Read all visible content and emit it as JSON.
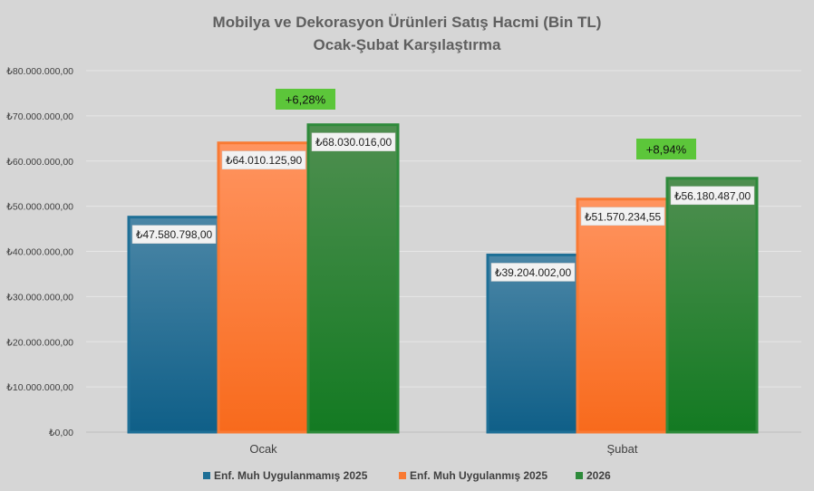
{
  "chart_data": {
    "type": "bar",
    "title": "Mobilya ve Dekorasyon Ürünleri Satış Hacmi (Bin TL)",
    "subtitle": "Ocak-Şubat Karşılaştırma",
    "categories": [
      "Ocak",
      "Şubat"
    ],
    "series": [
      {
        "name": "Enf. Muh Uygulanmamış 2025",
        "values": [
          47580798.0,
          39204002.0
        ],
        "labels": [
          "₺47.580.798,00",
          "₺39.204.002,00"
        ],
        "color": "#1e6f96"
      },
      {
        "name": "Enf. Muh Uygulanmış 2025",
        "values": [
          64010125.9,
          51570234.55
        ],
        "labels": [
          "₺64.010.125,90",
          "₺51.570.234,55"
        ],
        "color": "#f97a33"
      },
      {
        "name": "2026",
        "values": [
          68030016.0,
          56180487.0
        ],
        "labels": [
          "₺68.030.016,00",
          "₺56.180.487,00"
        ],
        "color": "#2d8a3a"
      }
    ],
    "yticks": [
      0,
      10000000,
      20000000,
      30000000,
      40000000,
      50000000,
      60000000,
      70000000,
      80000000
    ],
    "ytick_labels": [
      "₺0,00",
      "₺10.000.000,00",
      "₺20.000.000,00",
      "₺30.000.000,00",
      "₺40.000.000,00",
      "₺50.000.000,00",
      "₺60.000.000,00",
      "₺70.000.000,00",
      "₺80.000.000,00"
    ],
    "ylim": [
      0,
      80000000
    ],
    "grid": true,
    "legend_position": "bottom",
    "annotations": [
      {
        "text": "+6,28%",
        "category": "Ocak",
        "color": "#5cc63a"
      },
      {
        "text": "+8,94%",
        "category": "Şubat",
        "color": "#5cc63a"
      }
    ],
    "background": "#d6d6d6"
  }
}
